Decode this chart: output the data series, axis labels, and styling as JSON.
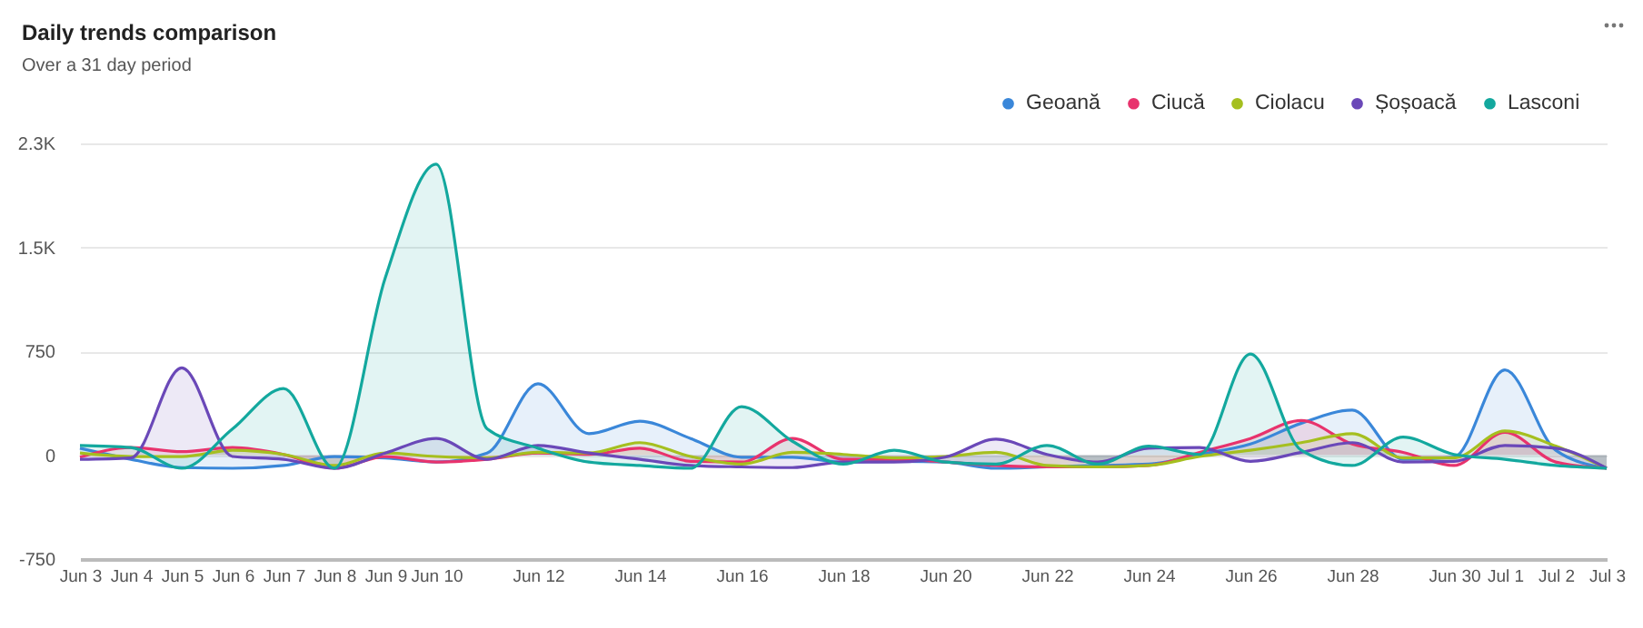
{
  "chart_data": {
    "type": "area",
    "title": "Daily trends comparison",
    "subtitle": "Over a 31 day period",
    "x": [
      "--06-03",
      "--06-04",
      "--06-05",
      "--06-06",
      "--06-07",
      "--06-08",
      "--06-09",
      "--06-10",
      "--06-11",
      "--06-12",
      "--06-13",
      "--06-14",
      "--06-15",
      "--06-16",
      "--06-17",
      "--06-18",
      "--06-19",
      "--06-20",
      "--06-21",
      "--06-22",
      "--06-23",
      "--06-24",
      "--06-25",
      "--06-26",
      "--06-27",
      "--06-28",
      "--06-29",
      "--06-30",
      "--07-01",
      "--07-02",
      "--07-03"
    ],
    "series": [
      {
        "name": "Geoană",
        "color": "#3a87d9",
        "values": [
          50,
          -30,
          -90,
          -95,
          -75,
          -10,
          -20,
          -50,
          15,
          515,
          155,
          245,
          120,
          -15,
          -15,
          -50,
          -45,
          -50,
          -95,
          -85,
          -75,
          -65,
          5,
          80,
          230,
          325,
          -30,
          -15,
          615,
          35,
          -95
        ]
      },
      {
        "name": "Ciucă",
        "color": "#e8336d",
        "values": [
          -15,
          55,
          25,
          55,
          5,
          -95,
          -10,
          -50,
          -30,
          15,
          5,
          50,
          -45,
          -50,
          120,
          -30,
          -30,
          -50,
          -75,
          -85,
          -85,
          -75,
          20,
          120,
          250,
          80,
          20,
          -75,
          165,
          -50,
          -95
        ]
      },
      {
        "name": "Ciolacu",
        "color": "#a5bf1f",
        "values": [
          15,
          -10,
          -10,
          35,
          5,
          -75,
          15,
          -10,
          -20,
          20,
          15,
          90,
          -10,
          -65,
          20,
          5,
          -20,
          -10,
          20,
          -75,
          -85,
          -75,
          -10,
          35,
          90,
          155,
          -20,
          -20,
          175,
          65,
          -95
        ]
      },
      {
        "name": "Șoșoacă",
        "color": "#6a48b8",
        "values": [
          -30,
          -20,
          630,
          -10,
          -30,
          -95,
          15,
          120,
          -30,
          70,
          15,
          -30,
          -75,
          -85,
          -90,
          -50,
          -50,
          -15,
          115,
          5,
          -50,
          50,
          55,
          -45,
          20,
          90,
          -50,
          -45,
          70,
          50,
          -95
        ]
      },
      {
        "name": "Lasconi",
        "color": "#13a89e",
        "values": [
          70,
          55,
          -95,
          190,
          480,
          -95,
          1280,
          2100,
          190,
          50,
          -50,
          -75,
          -95,
          350,
          100,
          -65,
          35,
          -50,
          -65,
          70,
          -65,
          65,
          5,
          730,
          35,
          -75,
          130,
          5,
          -30,
          -75,
          -95
        ]
      }
    ],
    "xlim": [
      "--06-03",
      "--07-03"
    ],
    "xticks": [
      {
        "value": "--06-03",
        "label": "Jun 3"
      },
      {
        "value": "--06-04",
        "label": "Jun 4"
      },
      {
        "value": "--06-05",
        "label": "Jun 5"
      },
      {
        "value": "--06-06",
        "label": "Jun 6"
      },
      {
        "value": "--06-07",
        "label": "Jun 7"
      },
      {
        "value": "--06-08",
        "label": "Jun 8"
      },
      {
        "value": "--06-09",
        "label": "Jun 9"
      },
      {
        "value": "--06-10",
        "label": "Jun 10"
      },
      {
        "value": "--06-12",
        "label": "Jun 12"
      },
      {
        "value": "--06-14",
        "label": "Jun 14"
      },
      {
        "value": "--06-16",
        "label": "Jun 16"
      },
      {
        "value": "--06-18",
        "label": "Jun 18"
      },
      {
        "value": "--06-20",
        "label": "Jun 20"
      },
      {
        "value": "--06-22",
        "label": "Jun 22"
      },
      {
        "value": "--06-24",
        "label": "Jun 24"
      },
      {
        "value": "--06-26",
        "label": "Jun 26"
      },
      {
        "value": "--06-28",
        "label": "Jun 28"
      },
      {
        "value": "--06-30",
        "label": "Jun 30"
      },
      {
        "value": "--07-01",
        "label": "Jul 1"
      },
      {
        "value": "--07-02",
        "label": "Jul 2"
      },
      {
        "value": "--07-03",
        "label": "Jul 3"
      }
    ],
    "ylim": [
      -750,
      2250
    ],
    "yticks": [
      -750,
      0,
      750,
      {
        "value": 1500,
        "label": "1.5K"
      },
      {
        "value": 2250,
        "label": "2.3K"
      }
    ],
    "grid": "y",
    "legend": "top right",
    "marker": "none",
    "line_style": "solid"
  }
}
